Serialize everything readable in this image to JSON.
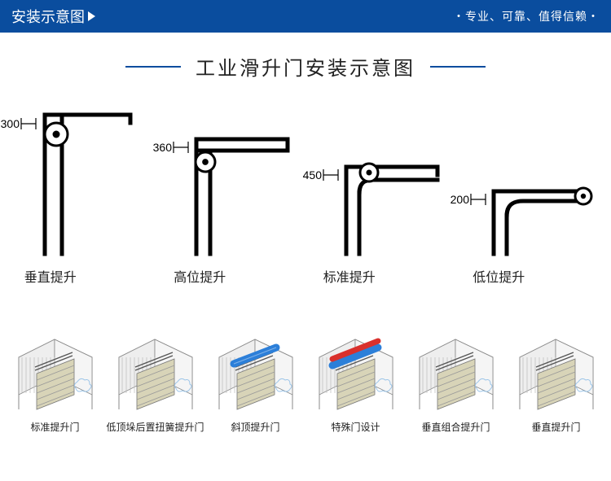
{
  "header": {
    "title": "安装示意图",
    "tagline": "・专业、可靠、值得信赖・"
  },
  "main_title": "工业滑升门安装示意图",
  "colors": {
    "brand": "#0a4d9e",
    "stroke": "#000000",
    "text": "#222222",
    "accent_red": "#d9302c",
    "accent_blue": "#2c7fd9",
    "panel": "#d8d4b8",
    "steel": "#c9c9c9"
  },
  "diagrams": [
    {
      "label": "垂直提升",
      "dim": "300",
      "type": "vertical"
    },
    {
      "label": "高位提升",
      "dim": "360",
      "type": "highlift"
    },
    {
      "label": "标准提升",
      "dim": "450",
      "type": "standard"
    },
    {
      "label": "低位提升",
      "dim": "200",
      "type": "lowlift"
    }
  ],
  "thumbnails": [
    {
      "label": "标准提升门",
      "variant": "plain"
    },
    {
      "label": "低顶垛后置扭簧提升门",
      "variant": "plain"
    },
    {
      "label": "斜顶提升门",
      "variant": "bluebar"
    },
    {
      "label": "特殊门设计",
      "variant": "redblue"
    },
    {
      "label": "垂直组合提升门",
      "variant": "plain"
    },
    {
      "label": "垂直提升门",
      "variant": "plain"
    }
  ]
}
